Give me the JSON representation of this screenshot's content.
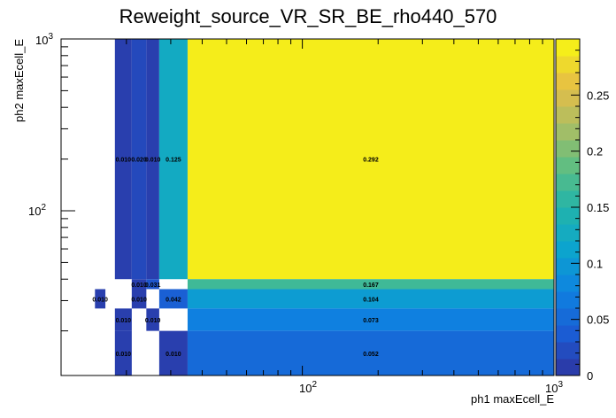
{
  "chart_data": {
    "type": "heatmap",
    "title": "Reweight_source_VR_SR_BE_rho440_570",
    "xlabel": "ph1 maxEcell_E",
    "ylabel": "ph2 maxEcell_E",
    "x_scale": "log",
    "y_scale": "log",
    "xlim": [
      11,
      1000
    ],
    "ylim": [
      11,
      1000
    ],
    "x_tick_labels": [
      "10^2",
      "10^3"
    ],
    "y_tick_labels": [
      "10^2",
      "10^3"
    ],
    "zlim": [
      0,
      0.3
    ],
    "colorbar_ticks": [
      0,
      0.05,
      0.1,
      0.15,
      0.2,
      0.25
    ],
    "colorbar_tick_labels": [
      "0",
      "0.05",
      "0.1",
      "0.15",
      "0.2",
      "0.25"
    ],
    "cells": [
      {
        "x0": 18,
        "x1": 21,
        "y0": 40,
        "y1": 1000,
        "value": 0.01,
        "label": "0.010"
      },
      {
        "x0": 21,
        "x1": 24,
        "y0": 40,
        "y1": 1000,
        "value": 0.02,
        "label": "0.020"
      },
      {
        "x0": 24,
        "x1": 27,
        "y0": 40,
        "y1": 1000,
        "value": 0.01,
        "label": "0.010"
      },
      {
        "x0": 27,
        "x1": 35,
        "y0": 40,
        "y1": 1000,
        "value": 0.125,
        "label": "0.125"
      },
      {
        "x0": 35,
        "x1": 1000,
        "y0": 40,
        "y1": 1000,
        "value": 0.292,
        "label": "0.292"
      },
      {
        "x0": 21,
        "x1": 24,
        "y0": 35,
        "y1": 40,
        "value": 0.01,
        "label": "0.010"
      },
      {
        "x0": 24,
        "x1": 27,
        "y0": 35,
        "y1": 40,
        "value": 0.031,
        "label": "0.031"
      },
      {
        "x0": 35,
        "x1": 1000,
        "y0": 35,
        "y1": 40,
        "value": 0.167,
        "label": "0.167"
      },
      {
        "x0": 15,
        "x1": 16.5,
        "y0": 27,
        "y1": 35,
        "value": 0.01,
        "label": "0.010"
      },
      {
        "x0": 21,
        "x1": 24,
        "y0": 27,
        "y1": 35,
        "value": 0.01,
        "label": "0.010"
      },
      {
        "x0": 27,
        "x1": 35,
        "y0": 27,
        "y1": 35,
        "value": 0.042,
        "label": "0.042"
      },
      {
        "x0": 35,
        "x1": 1000,
        "y0": 27,
        "y1": 35,
        "value": 0.104,
        "label": "0.104"
      },
      {
        "x0": 18,
        "x1": 21,
        "y0": 20,
        "y1": 27,
        "value": 0.01,
        "label": "0.010"
      },
      {
        "x0": 24,
        "x1": 27,
        "y0": 20,
        "y1": 27,
        "value": 0.01,
        "label": "0.010"
      },
      {
        "x0": 35,
        "x1": 1000,
        "y0": 20,
        "y1": 27,
        "value": 0.073,
        "label": "0.073"
      },
      {
        "x0": 18,
        "x1": 21,
        "y0": 11,
        "y1": 20,
        "value": 0.01,
        "label": "0.010"
      },
      {
        "x0": 27,
        "x1": 35,
        "y0": 11,
        "y1": 20,
        "value": 0.01,
        "label": "0.010"
      },
      {
        "x0": 35,
        "x1": 1000,
        "y0": 11,
        "y1": 20,
        "value": 0.052,
        "label": "0.052"
      }
    ]
  }
}
